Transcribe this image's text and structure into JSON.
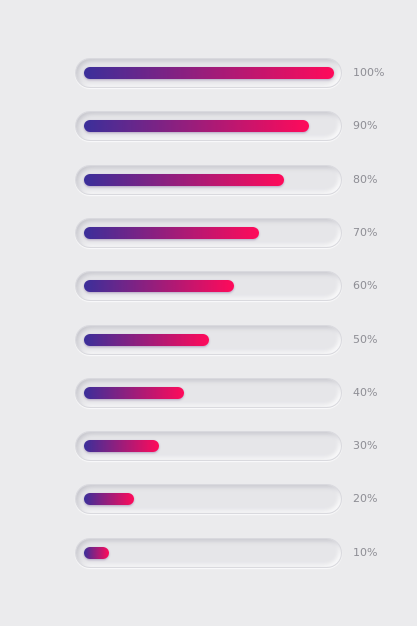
{
  "colors": {
    "background": "#ebebed",
    "track": "#e6e6e9",
    "gradient_start": "#3b2f9a",
    "gradient_end": "#ff0a5a",
    "label": "#8f8f96"
  },
  "progress_bars": [
    {
      "label": "100%",
      "value": 1.0
    },
    {
      "label": "90%",
      "value": 0.9
    },
    {
      "label": "80%",
      "value": 0.8
    },
    {
      "label": "70%",
      "value": 0.7
    },
    {
      "label": "60%",
      "value": 0.6
    },
    {
      "label": "50%",
      "value": 0.5
    },
    {
      "label": "40%",
      "value": 0.4
    },
    {
      "label": "30%",
      "value": 0.3
    },
    {
      "label": "20%",
      "value": 0.2
    },
    {
      "label": "10%",
      "value": 0.1
    }
  ]
}
